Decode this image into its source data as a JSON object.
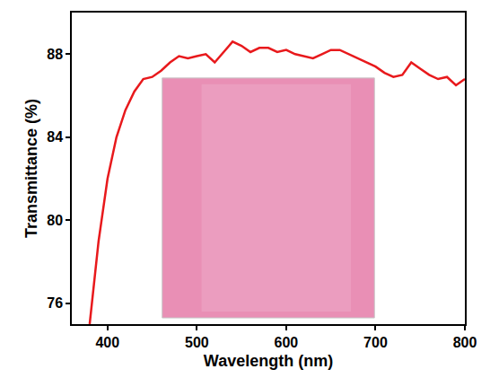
{
  "chart_data": {
    "type": "line",
    "x_label": "Wavelength (nm)",
    "y_label": "Transmittance (%)",
    "x": [
      380,
      390,
      400,
      410,
      420,
      430,
      440,
      450,
      460,
      470,
      480,
      490,
      500,
      510,
      520,
      530,
      540,
      550,
      560,
      570,
      580,
      590,
      600,
      610,
      620,
      630,
      640,
      650,
      660,
      670,
      680,
      690,
      700,
      710,
      720,
      730,
      740,
      750,
      760,
      770,
      780,
      790,
      800
    ],
    "values": [
      75.0,
      79.0,
      82.0,
      84.0,
      85.3,
      86.2,
      86.8,
      86.9,
      87.2,
      87.6,
      87.9,
      87.8,
      87.9,
      88.0,
      87.6,
      88.1,
      88.6,
      88.4,
      88.1,
      88.3,
      88.3,
      88.1,
      88.2,
      88.0,
      87.9,
      87.8,
      88.0,
      88.2,
      88.2,
      88.0,
      87.8,
      87.6,
      87.4,
      87.1,
      86.9,
      87.0,
      87.6,
      87.3,
      87.0,
      86.8,
      86.9,
      86.5,
      86.8
    ],
    "color": "#e8191c",
    "xlim": [
      360,
      800
    ],
    "ylim": [
      75,
      90
    ],
    "xticks": [
      400,
      500,
      600,
      700,
      800
    ],
    "yticks": [
      76,
      80,
      84,
      88
    ],
    "grid": false
  }
}
